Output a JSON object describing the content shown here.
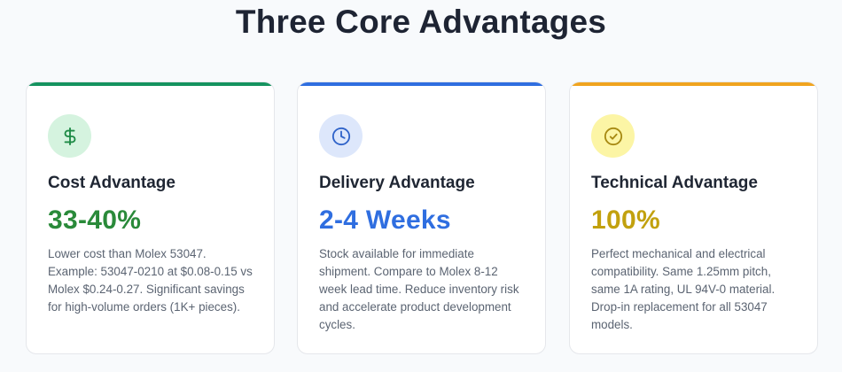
{
  "page": {
    "title": "Three Core Advantages"
  },
  "cards": [
    {
      "icon": "dollar-icon",
      "heading": "Cost Advantage",
      "stat": "33-40%",
      "description": "Lower cost than Molex 53047. Example: 53047-0210 at $0.08-0.15 vs Molex $0.24-0.27. Significant savings for high-volume orders (1K+ pieces).",
      "accent": "#15935f"
    },
    {
      "icon": "clock-icon",
      "heading": "Delivery Advantage",
      "stat": "2-4 Weeks",
      "description": "Stock available for immediate shipment. Compare to Molex 8-12 week lead time. Reduce inventory risk and accelerate product development cycles.",
      "accent": "#2f6ee0"
    },
    {
      "icon": "check-circle-icon",
      "heading": "Technical Advantage",
      "stat": "100%",
      "description": "Perfect mechanical and electrical compatibility. Same 1.25mm pitch, same 1A rating, UL 94V-0 material. Drop-in replacement for all 53047 models.",
      "accent": "#f0a41f"
    }
  ]
}
